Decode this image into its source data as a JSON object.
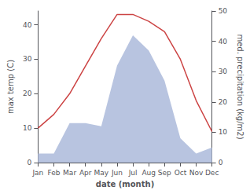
{
  "chart_data": {
    "type": "line",
    "categories": [
      "Jan",
      "Feb",
      "Mar",
      "Apr",
      "May",
      "Jun",
      "Jul",
      "Aug",
      "Sep",
      "Oct",
      "Nov",
      "Dec"
    ],
    "xlabel": "date (month)",
    "ylabel": "max temp (C)",
    "y2label": "med. precipitation (kg/m2)",
    "series": [
      {
        "type": "area",
        "color": "#b8c4e0",
        "axis": "y2",
        "values": [
          3,
          3,
          13,
          13,
          12,
          32,
          42,
          37,
          27,
          8,
          3,
          5
        ]
      },
      {
        "type": "line",
        "color": "#cc4444",
        "values": [
          10,
          14,
          20,
          28,
          36,
          43,
          43,
          41,
          38,
          30,
          18,
          9
        ]
      }
    ],
    "ylim": [
      0,
      44
    ],
    "yticks": [
      0,
      10,
      20,
      30,
      40
    ],
    "y2lim": [
      0,
      50
    ],
    "y2ticks": [
      0,
      10,
      20,
      30,
      40,
      50
    ],
    "grid": false
  }
}
